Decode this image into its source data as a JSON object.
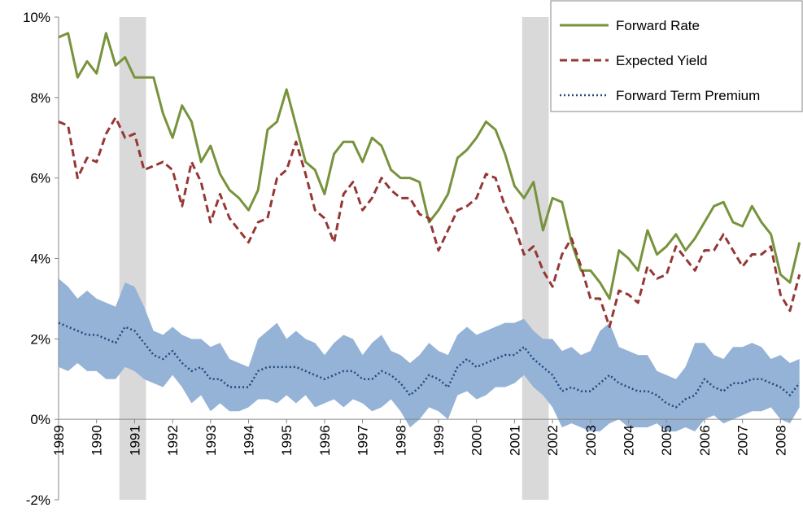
{
  "chart_data": {
    "type": "line",
    "x": [
      1989,
      1989.25,
      1989.5,
      1989.75,
      1990,
      1990.25,
      1990.5,
      1990.75,
      1991,
      1991.25,
      1991.5,
      1991.75,
      1992,
      1992.25,
      1992.5,
      1992.75,
      1993,
      1993.25,
      1993.5,
      1993.75,
      1994,
      1994.25,
      1994.5,
      1994.75,
      1995,
      1995.25,
      1995.5,
      1995.75,
      1996,
      1996.25,
      1996.5,
      1996.75,
      1997,
      1997.25,
      1997.5,
      1997.75,
      1998,
      1998.25,
      1998.5,
      1998.75,
      1999,
      1999.25,
      1999.5,
      1999.75,
      2000,
      2000.25,
      2000.5,
      2000.75,
      2001,
      2001.25,
      2001.5,
      2001.75,
      2002,
      2002.25,
      2002.5,
      2002.75,
      2003,
      2003.25,
      2003.5,
      2003.75,
      2004,
      2004.25,
      2004.5,
      2004.75,
      2005,
      2005.25,
      2005.5,
      2005.75,
      2006,
      2006.25,
      2006.5,
      2006.75,
      2007,
      2007.25,
      2007.5,
      2007.75,
      2008,
      2008.25,
      2008.5
    ],
    "series": [
      {
        "name": "Forward Rate",
        "color": "#77933c",
        "dash": "solid",
        "values": [
          9.5,
          9.6,
          8.5,
          8.9,
          8.6,
          9.6,
          8.8,
          9.0,
          8.5,
          8.5,
          8.5,
          7.6,
          7.0,
          7.8,
          7.4,
          6.4,
          6.8,
          6.1,
          5.7,
          5.5,
          5.2,
          5.7,
          7.2,
          7.4,
          8.2,
          7.3,
          6.4,
          6.2,
          5.6,
          6.6,
          6.9,
          6.9,
          6.4,
          7.0,
          6.8,
          6.2,
          6.0,
          6.0,
          5.9,
          4.9,
          5.2,
          5.6,
          6.5,
          6.7,
          7.0,
          7.4,
          7.2,
          6.6,
          5.8,
          5.5,
          5.9,
          4.7,
          5.5,
          5.4,
          4.4,
          3.7,
          3.7,
          3.4,
          3.0,
          4.2,
          4.0,
          3.7,
          4.7,
          4.1,
          4.3,
          4.6,
          4.2,
          4.5,
          4.9,
          5.3,
          5.4,
          4.9,
          4.8,
          5.3,
          4.9,
          4.6,
          3.6,
          3.4,
          4.4
        ]
      },
      {
        "name": "Expected Yield",
        "color": "#953735",
        "dash": "dashed",
        "values": [
          7.4,
          7.3,
          6.0,
          6.5,
          6.4,
          7.1,
          7.5,
          7.0,
          7.1,
          6.2,
          6.3,
          6.4,
          6.2,
          5.3,
          6.4,
          5.9,
          4.9,
          5.6,
          5.0,
          4.7,
          4.4,
          4.9,
          5.0,
          6.0,
          6.2,
          6.9,
          6.1,
          5.2,
          5.0,
          4.4,
          5.6,
          5.9,
          5.2,
          5.5,
          6.0,
          5.7,
          5.5,
          5.5,
          5.1,
          5.0,
          4.2,
          4.7,
          5.2,
          5.3,
          5.5,
          6.1,
          6.0,
          5.3,
          4.8,
          4.1,
          4.3,
          3.7,
          3.3,
          4.1,
          4.5,
          3.8,
          3.0,
          3.0,
          2.3,
          3.2,
          3.1,
          2.9,
          3.8,
          3.5,
          3.6,
          4.3,
          4.0,
          3.7,
          4.2,
          4.2,
          4.6,
          4.2,
          3.8,
          4.1,
          4.1,
          4.3,
          3.1,
          2.7,
          3.6
        ]
      },
      {
        "name": "Forward Term Premium",
        "color": "#1f497d",
        "dash": "dotted",
        "values": [
          2.4,
          2.3,
          2.2,
          2.1,
          2.1,
          2.0,
          1.9,
          2.3,
          2.2,
          1.9,
          1.6,
          1.5,
          1.7,
          1.4,
          1.2,
          1.3,
          1.0,
          1.0,
          0.8,
          0.8,
          0.8,
          1.2,
          1.3,
          1.3,
          1.3,
          1.3,
          1.2,
          1.1,
          1.0,
          1.1,
          1.2,
          1.2,
          1.0,
          1.0,
          1.2,
          1.1,
          0.9,
          0.6,
          0.8,
          1.1,
          1.0,
          0.8,
          1.3,
          1.5,
          1.3,
          1.4,
          1.5,
          1.6,
          1.6,
          1.8,
          1.5,
          1.3,
          1.1,
          0.7,
          0.8,
          0.7,
          0.7,
          0.9,
          1.1,
          0.9,
          0.8,
          0.7,
          0.7,
          0.6,
          0.4,
          0.3,
          0.5,
          0.6,
          1.0,
          0.8,
          0.7,
          0.9,
          0.9,
          1.0,
          1.0,
          0.9,
          0.8,
          0.6,
          0.9
        ]
      }
    ],
    "band": {
      "color": "#95b3d7",
      "upper": [
        3.5,
        3.3,
        3.0,
        3.2,
        3.0,
        2.9,
        2.8,
        3.4,
        3.3,
        2.8,
        2.2,
        2.1,
        2.3,
        2.1,
        2.0,
        2.0,
        1.8,
        1.9,
        1.5,
        1.4,
        1.3,
        2.0,
        2.2,
        2.4,
        2.0,
        2.2,
        2.0,
        1.9,
        1.6,
        1.9,
        2.1,
        2.0,
        1.6,
        1.9,
        2.1,
        1.7,
        1.6,
        1.4,
        1.6,
        1.9,
        1.7,
        1.6,
        2.1,
        2.3,
        2.1,
        2.2,
        2.3,
        2.4,
        2.4,
        2.5,
        2.2,
        2.0,
        2.0,
        1.7,
        1.8,
        1.6,
        1.7,
        2.2,
        2.4,
        1.8,
        1.7,
        1.6,
        1.6,
        1.2,
        1.1,
        1.0,
        1.3,
        1.9,
        1.9,
        1.6,
        1.5,
        1.8,
        1.8,
        1.9,
        1.8,
        1.5,
        1.6,
        1.4,
        1.5
      ],
      "lower": [
        1.3,
        1.2,
        1.4,
        1.2,
        1.2,
        1.0,
        1.0,
        1.3,
        1.2,
        1.0,
        0.9,
        0.8,
        1.1,
        0.8,
        0.4,
        0.6,
        0.2,
        0.4,
        0.2,
        0.2,
        0.3,
        0.5,
        0.5,
        0.4,
        0.6,
        0.4,
        0.6,
        0.3,
        0.4,
        0.5,
        0.3,
        0.5,
        0.4,
        0.2,
        0.3,
        0.5,
        0.2,
        -0.2,
        0.0,
        0.3,
        0.2,
        0.0,
        0.6,
        0.7,
        0.5,
        0.6,
        0.8,
        0.8,
        0.9,
        1.1,
        0.8,
        0.6,
        0.3,
        -0.2,
        -0.1,
        -0.2,
        -0.3,
        -0.3,
        -0.1,
        0.0,
        -0.2,
        -0.2,
        -0.2,
        -0.1,
        -0.3,
        -0.3,
        -0.2,
        -0.3,
        0.0,
        0.1,
        -0.1,
        0.0,
        0.1,
        0.2,
        0.2,
        0.3,
        0.0,
        -0.1,
        0.3
      ]
    },
    "shaded_periods": [
      [
        1990.6,
        1991.3
      ],
      [
        2001.2,
        2001.9
      ]
    ],
    "shade_color": "#d9d9d9",
    "xlim": [
      1989,
      2008.55
    ],
    "xticks": [
      1989,
      1990,
      1991,
      1992,
      1993,
      1994,
      1995,
      1996,
      1997,
      1998,
      1999,
      2000,
      2001,
      2002,
      2003,
      2004,
      2005,
      2006,
      2007,
      2008
    ],
    "ylim": [
      -2,
      10
    ],
    "yticks": [
      {
        "value": -2,
        "label": "-2%"
      },
      {
        "value": 0,
        "label": "0%"
      },
      {
        "value": 2,
        "label": "2%"
      },
      {
        "value": 4,
        "label": "4%"
      },
      {
        "value": 6,
        "label": "6%"
      },
      {
        "value": 8,
        "label": "8%"
      },
      {
        "value": 10,
        "label": "10%"
      }
    ],
    "grid": false,
    "legend": "top-right"
  }
}
